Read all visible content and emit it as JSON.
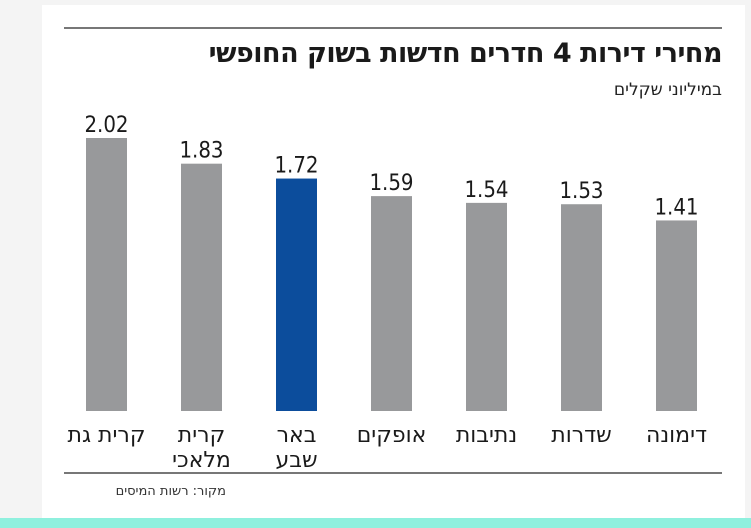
{
  "title": "מחירי דירות 4 חדרים חדשות בשוק החופשי",
  "subtitle": "במיליוני שקלים",
  "source": "מקור: רשות המיסים",
  "colors": {
    "default_bar": "#98999b",
    "highlight_bar": "#0c4d9c",
    "text": "#1a1a1a"
  },
  "chart_data": {
    "type": "bar",
    "title": "מחירי דירות 4 חדרים חדשות בשוק החופשי",
    "ylabel": "במיליוני שקלים",
    "xlabel": "",
    "ylim": [
      0,
      2.02
    ],
    "categories": [
      [
        "קרית גת"
      ],
      [
        "קרית",
        "מלאכי"
      ],
      [
        "באר",
        "שבע"
      ],
      [
        "אופקים"
      ],
      [
        "נתיבות"
      ],
      [
        "שדרות"
      ],
      [
        "דימונה"
      ]
    ],
    "values": [
      2.02,
      1.83,
      1.72,
      1.59,
      1.54,
      1.53,
      1.41
    ],
    "value_labels": [
      "2.02",
      "1.83",
      "1.72",
      "1.59",
      "1.54",
      "1.53",
      "1.41"
    ],
    "highlight": [
      false,
      false,
      true,
      false,
      false,
      false,
      false
    ]
  }
}
